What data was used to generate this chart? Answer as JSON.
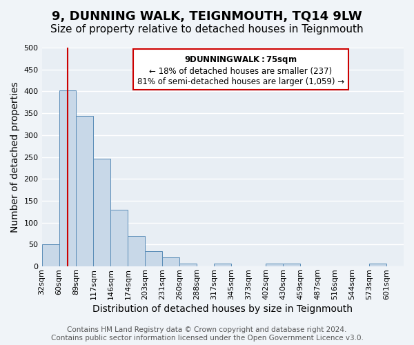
{
  "title": "9, DUNNING WALK, TEIGNMOUTH, TQ14 9LW",
  "subtitle": "Size of property relative to detached houses in Teignmouth",
  "xlabel": "Distribution of detached houses by size in Teignmouth",
  "ylabel": "Number of detached properties",
  "bin_labels": [
    "32sqm",
    "60sqm",
    "89sqm",
    "117sqm",
    "146sqm",
    "174sqm",
    "203sqm",
    "231sqm",
    "260sqm",
    "288sqm",
    "317sqm",
    "345sqm",
    "373sqm",
    "402sqm",
    "430sqm",
    "459sqm",
    "487sqm",
    "516sqm",
    "544sqm",
    "573sqm",
    "601sqm"
  ],
  "bar_heights": [
    51,
    402,
    344,
    246,
    130,
    70,
    35,
    20,
    6,
    0,
    6,
    0,
    0,
    6,
    6,
    0,
    0,
    0,
    0,
    6,
    0
  ],
  "bar_color": "#c8d8e8",
  "bar_edge_color": "#5b8db8",
  "vline_color": "#cc0000",
  "property_sqm": 75,
  "bin_start_sqm": [
    32,
    60,
    89,
    117,
    146,
    174,
    203,
    231,
    260,
    288,
    317,
    345,
    373,
    402,
    430,
    459,
    487,
    516,
    544,
    573,
    601
  ],
  "ylim": [
    0,
    500
  ],
  "yticks": [
    0,
    50,
    100,
    150,
    200,
    250,
    300,
    350,
    400,
    450,
    500
  ],
  "annotation_title": "9 DUNNING WALK: 75sqm",
  "annotation_line1": "← 18% of detached houses are smaller (237)",
  "annotation_line2": "81% of semi-detached houses are larger (1,059) →",
  "annotation_box_color": "#ffffff",
  "annotation_border_color": "#cc0000",
  "footer_line1": "Contains HM Land Registry data © Crown copyright and database right 2024.",
  "footer_line2": "Contains public sector information licensed under the Open Government Licence v3.0.",
  "background_color": "#f0f4f8",
  "plot_background_color": "#e8eef4",
  "grid_color": "#ffffff",
  "title_fontsize": 13,
  "subtitle_fontsize": 11,
  "axis_label_fontsize": 10,
  "tick_fontsize": 8,
  "footer_fontsize": 7.5
}
